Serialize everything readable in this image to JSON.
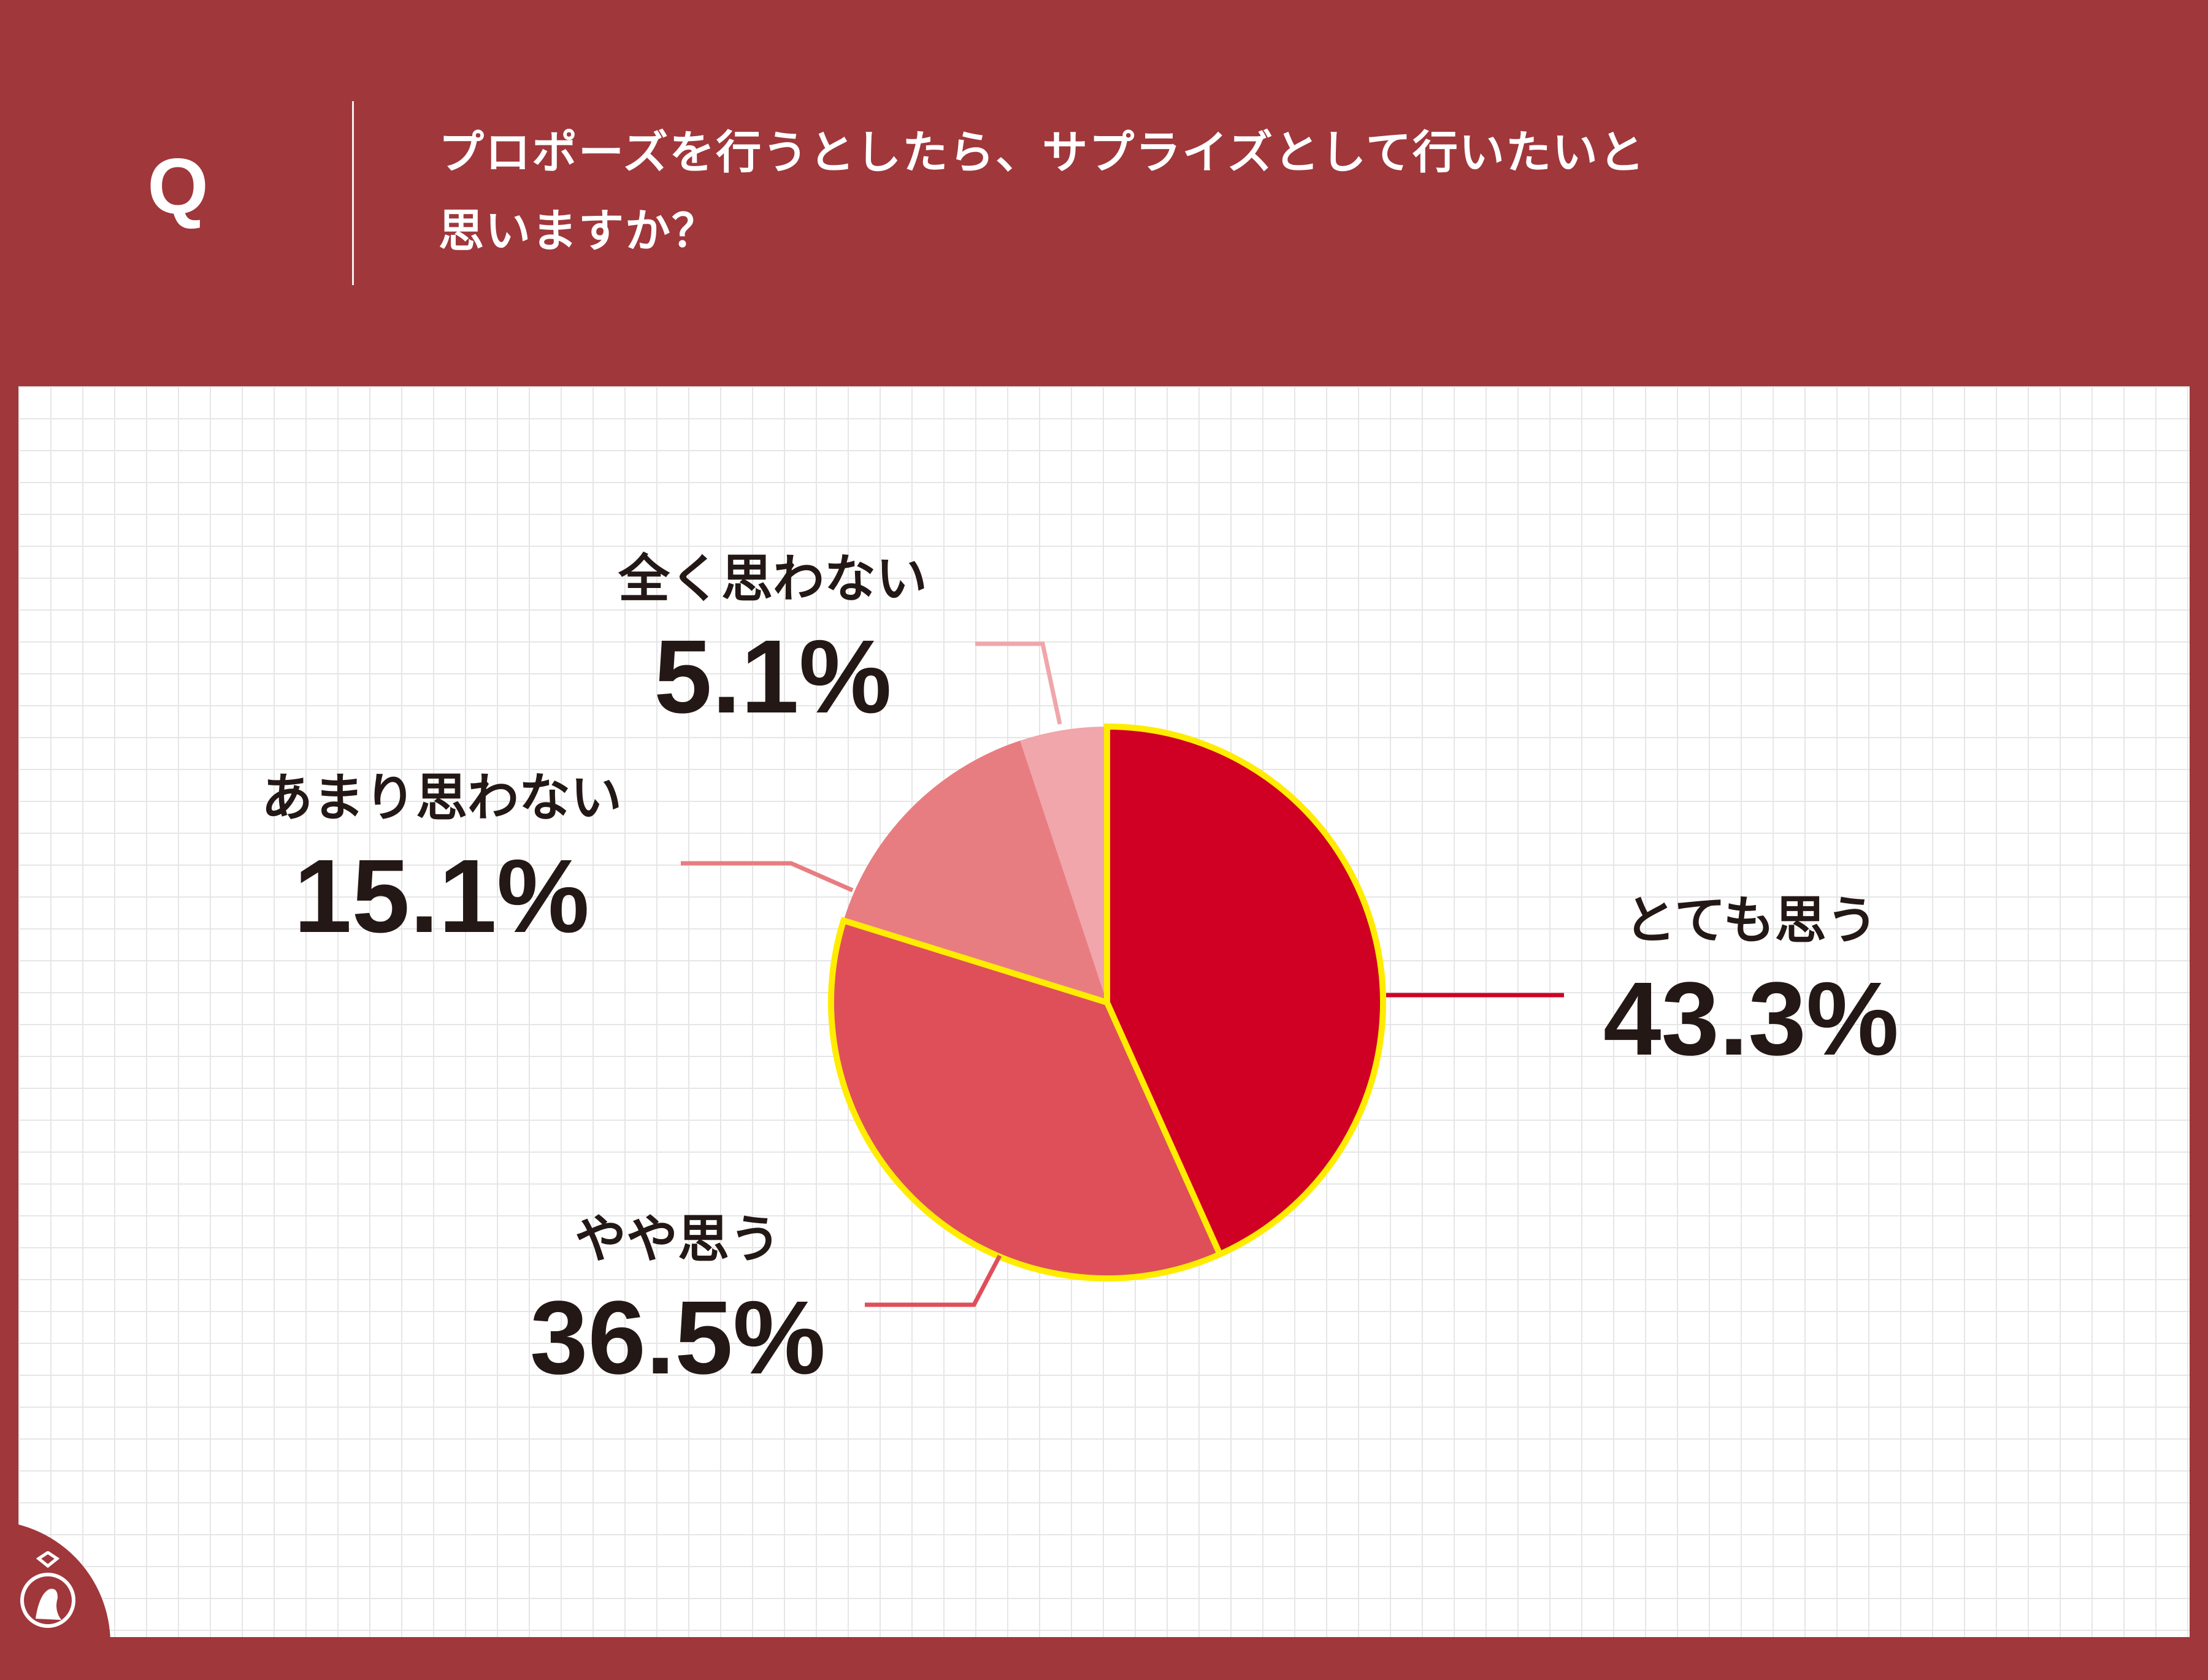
{
  "header": {
    "q_label": "Q",
    "question_line1": "プロポーズを行うとしたら、サプライズとして行いたいと",
    "question_line2": "思いますか？"
  },
  "chart_data": {
    "type": "pie",
    "title": "",
    "start": "12 o'clock, clockwise",
    "slices": [
      {
        "label": "とても思う",
        "value": 43.3,
        "value_text": "43.3%",
        "color": "#cf0023"
      },
      {
        "label": "やや思う",
        "value": 36.5,
        "value_text": "36.5%",
        "color": "#de4f5a"
      },
      {
        "label": "あまり思わない",
        "value": 15.1,
        "value_text": "15.1%",
        "color": "#e87d81"
      },
      {
        "label": "全く思わない",
        "value": 5.1,
        "value_text": "5.1%",
        "color": "#f0a6aa"
      }
    ],
    "highlight_color": "#ffec00"
  },
  "colors": {
    "brand": "#a0373b",
    "text": "#231815",
    "grid": "#e6e6e6"
  },
  "logo": {
    "icon": "ring-silhouette-icon"
  }
}
